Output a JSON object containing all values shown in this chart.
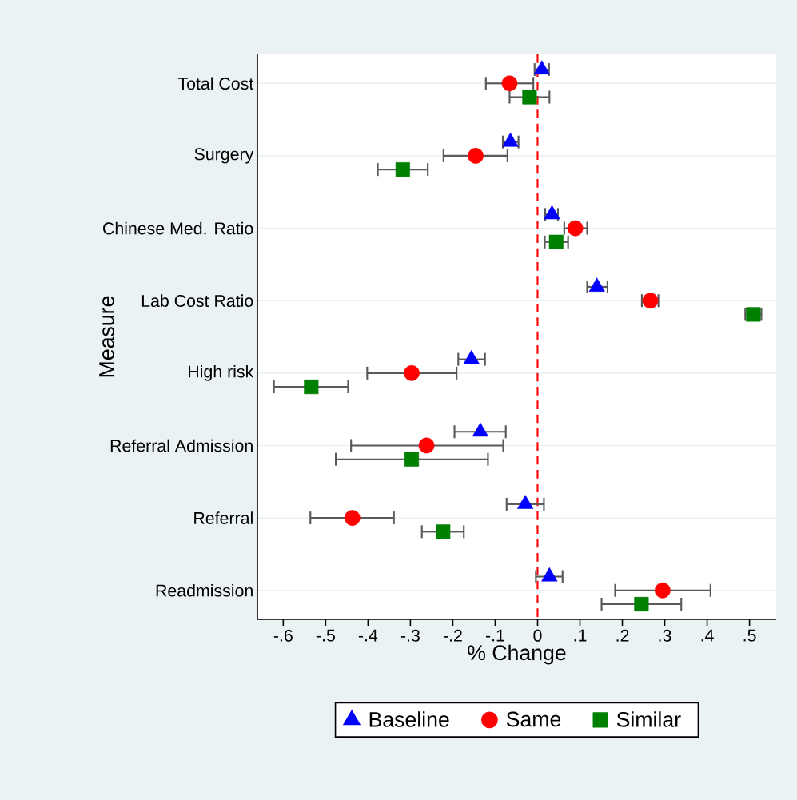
{
  "chart_data": {
    "type": "scatter",
    "orientation": "horizontal",
    "xlabel": "% Change",
    "ylabel": "Measure",
    "categories": [
      "Total Cost",
      "Surgery",
      "Chinese Med. Ratio",
      "Lab Cost Ratio",
      "High risk",
      "Referral Admission",
      "Referral",
      "Readmission"
    ],
    "series": [
      {
        "name": "Baseline",
        "color": "#0000ff",
        "marker": "triangle",
        "values": [
          0.01,
          -0.064,
          0.034,
          0.14,
          -0.156,
          -0.135,
          -0.029,
          0.028
        ],
        "errors": [
          [
            -0.007,
            0.027
          ],
          [
            -0.082,
            -0.045
          ],
          [
            0.018,
            0.048
          ],
          [
            0.117,
            0.165
          ],
          [
            -0.187,
            -0.124
          ],
          [
            -0.196,
            -0.075
          ],
          [
            -0.073,
            0.015
          ],
          [
            -0.004,
            0.059
          ]
        ]
      },
      {
        "name": "Same",
        "color": "#ff0000",
        "marker": "circle",
        "values": [
          -0.066,
          -0.146,
          0.089,
          0.266,
          -0.297,
          -0.262,
          -0.437,
          0.295
        ],
        "errors": [
          [
            -0.122,
            -0.01
          ],
          [
            -0.222,
            -0.071
          ],
          [
            0.063,
            0.117
          ],
          [
            0.246,
            0.285
          ],
          [
            -0.402,
            -0.191
          ],
          [
            -0.44,
            -0.081
          ],
          [
            -0.536,
            -0.339
          ],
          [
            0.183,
            0.408
          ]
        ]
      },
      {
        "name": "Similar",
        "color": "#008000",
        "marker": "square",
        "values": [
          -0.019,
          -0.318,
          0.044,
          0.509,
          -0.534,
          -0.297,
          -0.223,
          0.245
        ],
        "errors": [
          [
            -0.066,
            0.028
          ],
          [
            -0.377,
            -0.259
          ],
          [
            0.017,
            0.072
          ],
          [
            0.49,
            0.528
          ],
          [
            -0.622,
            -0.447
          ],
          [
            -0.476,
            -0.117
          ],
          [
            -0.273,
            -0.174
          ],
          [
            0.151,
            0.339
          ]
        ]
      }
    ],
    "xlim": [
      -0.661,
      0.563
    ],
    "xticks": [
      {
        "value": -0.6,
        "label": "-.6"
      },
      {
        "value": -0.5,
        "label": "-.5"
      },
      {
        "value": -0.4,
        "label": "-.4"
      },
      {
        "value": -0.3,
        "label": "-.3"
      },
      {
        "value": -0.2,
        "label": "-.2"
      },
      {
        "value": -0.1,
        "label": "-.1"
      },
      0,
      {
        "value": 0.1,
        "label": ".1"
      },
      {
        "value": 0.2,
        "label": ".2"
      },
      {
        "value": 0.3,
        "label": ".3"
      },
      {
        "value": 0.4,
        "label": ".4"
      },
      {
        "value": 0.5,
        "label": ".5"
      }
    ],
    "ref_lines": [
      {
        "axis": "x",
        "value": 0,
        "color": "#ff0000",
        "line_style": "dashed"
      }
    ],
    "grid": "y",
    "legend": "bottom"
  }
}
